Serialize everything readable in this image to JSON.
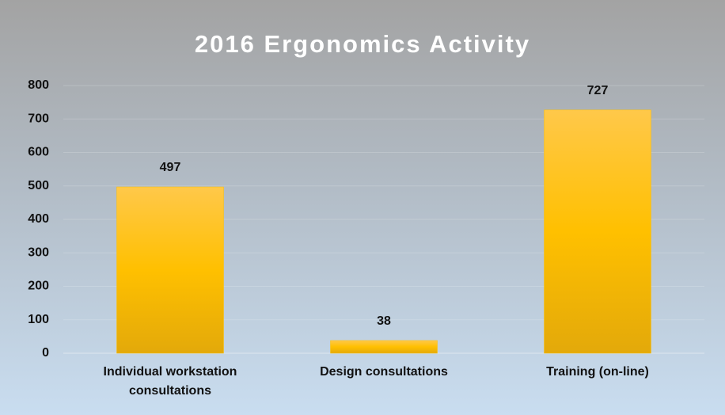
{
  "chart_data": {
    "type": "bar",
    "title": "2016 Ergonomics Activity",
    "categories": [
      "Individual workstation consultations",
      "Design consultations",
      "Training (on-line)"
    ],
    "values": [
      497,
      38,
      727
    ],
    "color": "#ffc000",
    "ylim": [
      0,
      800
    ],
    "yticks": [
      0,
      100,
      200,
      300,
      400,
      500,
      600,
      700,
      800
    ],
    "grid": true
  }
}
